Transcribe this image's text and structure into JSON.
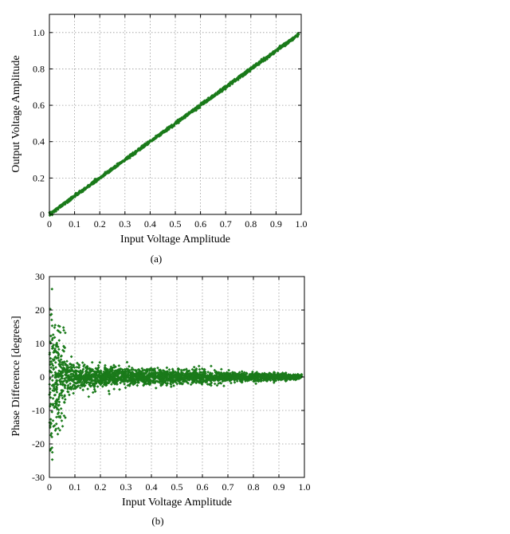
{
  "colors": {
    "marker": "#1a7a1a",
    "grid": "#9a9a9a",
    "axis": "#000000"
  },
  "chart_data": [
    {
      "type": "scatter",
      "caption": "(a)",
      "xlabel": "Input Voltage Amplitude",
      "ylabel": "Output Voltage Amplitude",
      "xlim": [
        0,
        1.0
      ],
      "ylim": [
        0,
        1.1
      ],
      "xticks": [
        "0",
        "0.1",
        "0.2",
        "0.3",
        "0.4",
        "0.5",
        "0.6",
        "0.7",
        "0.8",
        "0.9",
        "1.0"
      ],
      "yticks": [
        "0",
        "0.2",
        "0.4",
        "0.6",
        "0.8",
        "1.0"
      ],
      "grid": true,
      "series": [
        {
          "relation": "y = x",
          "x_range": [
            0,
            0.99
          ],
          "y_range": [
            0,
            0.99
          ],
          "spread": 0.008
        }
      ]
    },
    {
      "type": "scatter",
      "caption": "(b)",
      "xlabel": "Input Voltage Amplitude",
      "ylabel": "Phase Difference [degrees]",
      "xlim": [
        0,
        1.0
      ],
      "ylim": [
        -30,
        30
      ],
      "xticks": [
        "0",
        "0.1",
        "0.2",
        "0.3",
        "0.4",
        "0.5",
        "0.6",
        "0.7",
        "0.8",
        "0.9",
        "1.0"
      ],
      "yticks": [
        "-30",
        "-20",
        "-10",
        "0",
        "10",
        "20",
        "30"
      ],
      "grid": true,
      "series": [
        {
          "x_range": [
            0,
            0.99
          ],
          "center": 0,
          "envelope": [
            [
              0.01,
              25
            ],
            [
              0.03,
              12
            ],
            [
              0.05,
              8
            ],
            [
              0.1,
              5
            ],
            [
              0.2,
              3.5
            ],
            [
              0.4,
              2.5
            ],
            [
              0.6,
              2
            ],
            [
              0.8,
              1.5
            ],
            [
              0.99,
              0.8
            ]
          ]
        }
      ]
    }
  ]
}
